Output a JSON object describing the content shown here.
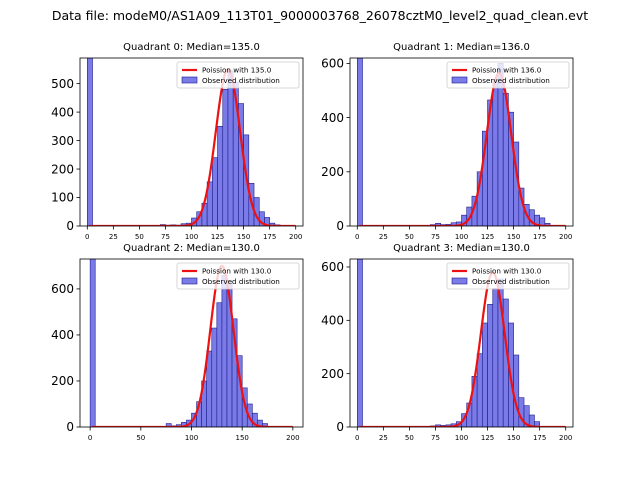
{
  "figure": {
    "suptitle": "Data file: modeM0/AS1A09_113T01_9000003768_26078cztM0_level2_quad_clean.evt"
  },
  "colors": {
    "bar_fill": "#7b7be8",
    "bar_edge": "#1c1c8c",
    "fit_line": "#ee1111"
  },
  "chart_data": [
    {
      "type": "bar",
      "title": "Quadrant 0: Median=135.0",
      "bin_width": 5,
      "bin_starts": [
        0,
        65,
        70,
        75,
        80,
        85,
        90,
        95,
        100,
        105,
        110,
        115,
        120,
        125,
        130,
        135,
        140,
        145,
        150,
        155,
        160,
        165,
        170,
        175,
        180,
        185
      ],
      "counts": [
        590,
        2,
        5,
        3,
        4,
        3,
        8,
        10,
        28,
        50,
        80,
        155,
        240,
        350,
        480,
        545,
        505,
        430,
        320,
        150,
        100,
        50,
        30,
        10,
        4,
        2
      ],
      "poisson_mean": 135.0,
      "poisson_peak": 550,
      "xlim": [
        -7,
        207
      ],
      "ylim": [
        0,
        590
      ],
      "xticks": [
        0,
        25,
        50,
        75,
        100,
        125,
        150,
        175,
        200
      ],
      "yticks": [
        0,
        100,
        200,
        300,
        400,
        500
      ],
      "legend": [
        "Poission with 135.0",
        "Observed distribution"
      ],
      "legend_loc": "upper right"
    },
    {
      "type": "bar",
      "title": "Quadrant 1: Median=136.0",
      "bin_width": 5,
      "bin_starts": [
        0,
        70,
        75,
        80,
        85,
        90,
        95,
        100,
        105,
        110,
        115,
        120,
        125,
        130,
        135,
        140,
        145,
        150,
        155,
        160,
        165,
        170,
        175,
        180
      ],
      "counts": [
        620,
        5,
        10,
        5,
        6,
        12,
        15,
        40,
        70,
        110,
        200,
        350,
        465,
        540,
        600,
        490,
        420,
        310,
        140,
        80,
        60,
        40,
        30,
        10
      ],
      "poisson_mean": 136.0,
      "poisson_peak": 565,
      "xlim": [
        -7,
        207
      ],
      "ylim": [
        0,
        620
      ],
      "xticks": [
        0,
        25,
        50,
        75,
        100,
        125,
        150,
        175,
        200
      ],
      "yticks": [
        0,
        200,
        400,
        600
      ],
      "legend": [
        "Poission with 136.0",
        "Observed distribution"
      ],
      "legend_loc": "upper right"
    },
    {
      "type": "bar",
      "title": "Quadrant 2: Median=130.0",
      "bin_width": 5,
      "bin_starts": [
        0,
        75,
        80,
        85,
        90,
        95,
        100,
        105,
        110,
        115,
        120,
        125,
        130,
        135,
        140,
        145,
        150,
        155,
        160,
        165,
        170
      ],
      "counts": [
        730,
        15,
        5,
        10,
        20,
        30,
        60,
        110,
        200,
        330,
        430,
        540,
        660,
        630,
        470,
        310,
        170,
        100,
        60,
        30,
        15
      ],
      "poisson_mean": 130.0,
      "poisson_peak": 700,
      "xlim": [
        -10,
        210
      ],
      "ylim": [
        0,
        730
      ],
      "xticks": [
        0,
        50,
        100,
        150,
        200
      ],
      "yticks": [
        0,
        200,
        400,
        600
      ],
      "legend": [
        "Poission with 130.0",
        "Observed distribution"
      ],
      "legend_loc": "upper right"
    },
    {
      "type": "bar",
      "title": "Quadrant 3: Median=130.0",
      "bin_width": 5,
      "bin_starts": [
        0,
        70,
        75,
        80,
        85,
        90,
        95,
        100,
        105,
        110,
        115,
        120,
        125,
        130,
        135,
        140,
        145,
        150,
        155,
        160,
        165,
        170
      ],
      "counts": [
        630,
        4,
        8,
        6,
        8,
        12,
        20,
        50,
        90,
        190,
        275,
        390,
        460,
        520,
        555,
        480,
        390,
        270,
        110,
        80,
        45,
        20
      ],
      "poisson_mean": 130.0,
      "poisson_peak": 580,
      "xlim": [
        -7,
        207
      ],
      "ylim": [
        0,
        630
      ],
      "xticks": [
        0,
        25,
        50,
        75,
        100,
        125,
        150,
        175,
        200
      ],
      "yticks": [
        0,
        200,
        400,
        600
      ],
      "legend": [
        "Poission with 130.0",
        "Observed distribution"
      ],
      "legend_loc": "upper right"
    }
  ]
}
